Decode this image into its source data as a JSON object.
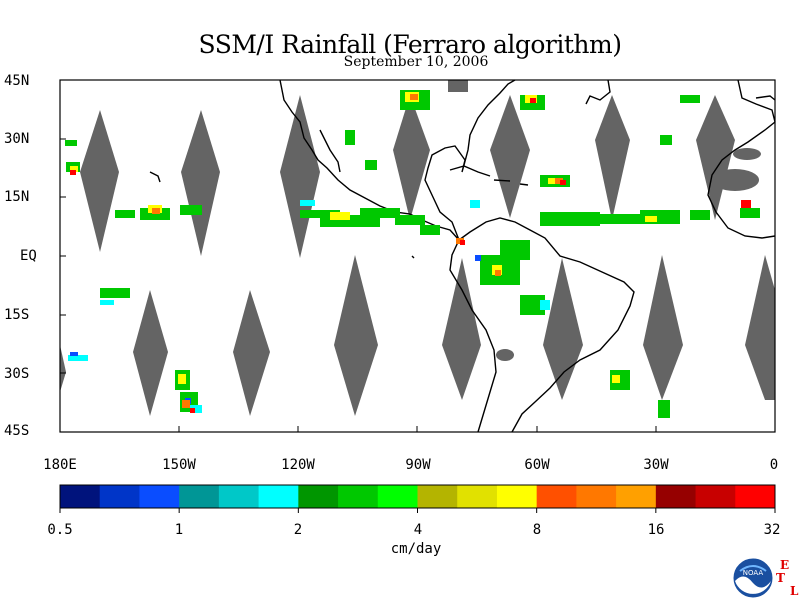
{
  "title": "SSM/I Rainfall (Ferraro algorithm)",
  "subtitle": "September 10, 2006",
  "lat_labels": [
    "45N",
    "30N",
    "15N",
    "EQ",
    "15S",
    "30S",
    "45S"
  ],
  "lon_labels": [
    "180E",
    "150W",
    "120W",
    "90W",
    "60W",
    "30W",
    "0"
  ],
  "colorbar": {
    "unit": "cm/day",
    "tick_labels": [
      "0.5",
      "1",
      "2",
      "4",
      "8",
      "16",
      "32"
    ],
    "colors": [
      "#00137c",
      "#0035c8",
      "#0a4dff",
      "#009696",
      "#00c8c8",
      "#00ffff",
      "#009600",
      "#00c800",
      "#00ff00",
      "#b4b400",
      "#e1e100",
      "#ffff00",
      "#ff5000",
      "#ff7800",
      "#ffa000",
      "#960000",
      "#c80000",
      "#ff0000"
    ]
  },
  "legend_colors": {
    "no_data_swath": "#646464",
    "coastline": "#000000"
  },
  "logo": {
    "etl_letters": [
      "E",
      "T",
      "L"
    ],
    "noaa_text": "NOAA"
  },
  "map_extent": {
    "lon_range": [
      -180,
      0
    ],
    "lat_range": [
      -45,
      45
    ]
  }
}
